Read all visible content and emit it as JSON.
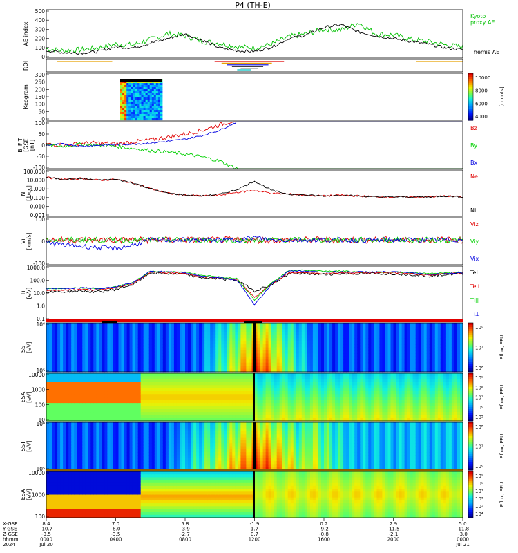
{
  "title": "P4 (TH-E)",
  "colors": {
    "red": "#e00000",
    "green": "#00d000",
    "blue": "#0000e0",
    "orange": "#e8a000",
    "black": "#000000",
    "kyoto": "#00c000"
  },
  "panels": [
    {
      "id": "ae",
      "ylabel": "AE index",
      "yticks": [
        "500",
        "400",
        "300",
        "200",
        "100",
        "0"
      ],
      "right_labels": [
        {
          "text": "Kyoto\nproxy AE",
          "color": "#00c000"
        },
        {
          "text": "Themis AE",
          "color": "#000000"
        }
      ]
    },
    {
      "id": "roi",
      "ylabel": "ROI",
      "yticks": []
    },
    {
      "id": "keogram",
      "ylabel": "Keogram",
      "yticks": [
        "300",
        "250",
        "200",
        "150",
        "100",
        "50",
        "0"
      ],
      "colorbar": {
        "ticks": [
          "10000",
          "8000",
          "6000",
          "4000"
        ],
        "label": "[counts]"
      }
    },
    {
      "id": "bfield",
      "ylabel": "B_FIT\n[GSE\n[nT]",
      "yticks": [
        "100",
        "50",
        "0",
        "-50",
        "-100"
      ],
      "right_labels": [
        {
          "text": "Bz",
          "color": "#e00000"
        },
        {
          "text": "By",
          "color": "#00d000"
        },
        {
          "text": "Bx",
          "color": "#0000e0"
        }
      ]
    },
    {
      "id": "density",
      "ylabel": "Ni\n[1/cc]",
      "yticks": [
        "100.000",
        "10.000",
        "1.000",
        "0.100",
        "0.010",
        "0.001"
      ],
      "right_labels": [
        {
          "text": "Ne",
          "color": "#e00000"
        },
        {
          "text": "Ni",
          "color": "#000000"
        }
      ]
    },
    {
      "id": "velocity",
      "ylabel": "Vi\n[km/s]",
      "yticks": [
        "100",
        "0",
        "-100"
      ],
      "right_labels": [
        {
          "text": "Viz",
          "color": "#e00000"
        },
        {
          "text": "Viy",
          "color": "#00d000"
        },
        {
          "text": "Vix",
          "color": "#0000e0"
        }
      ]
    },
    {
      "id": "temp",
      "ylabel": "Ti\n[eV]",
      "yticks": [
        "1000.0",
        "100.0",
        "10.0",
        "1.0",
        "0.1"
      ],
      "right_labels": [
        {
          "text": "TeI",
          "color": "#000000"
        },
        {
          "text": "Te⊥",
          "color": "#e00000"
        },
        {
          "text": "Ti||",
          "color": "#00d000"
        },
        {
          "text": "Ti⊥",
          "color": "#0000e0"
        }
      ]
    },
    {
      "id": "sst_e",
      "ylabel": "SST\n[eV]",
      "yticks": [
        "10⁶",
        "10⁵"
      ],
      "colorbar": {
        "ticks": [
          "10⁸",
          "10⁷",
          "10⁶"
        ],
        "label": "Eflux, EFU"
      }
    },
    {
      "id": "esa_e",
      "ylabel": "ESA\n[eV]",
      "yticks": [
        "10000",
        "1000",
        "100",
        "10"
      ],
      "colorbar": {
        "ticks": [
          "10⁹",
          "10⁸",
          "10⁷",
          "10⁶",
          "10⁵"
        ],
        "label": "Eflux, EFU"
      }
    },
    {
      "id": "sst_i",
      "ylabel": "SST\n[eV]",
      "yticks": [
        "10⁶",
        "10⁵"
      ],
      "colorbar": {
        "ticks": [
          "10⁸",
          "10⁷",
          "10⁶"
        ],
        "label": "Eflux, EFU"
      }
    },
    {
      "id": "esa_i",
      "ylabel": "ESA\n[eV]",
      "yticks": [
        "10000",
        "1000",
        "100"
      ],
      "colorbar": {
        "ticks": [
          "10⁹",
          "10⁸",
          "10⁷",
          "10⁶",
          "10⁵",
          "10⁴"
        ],
        "label": "Eflux, EFU"
      }
    }
  ],
  "xaxis": {
    "row_labels": [
      "X-GSE",
      "Y-GSE",
      "Z-GSE",
      "hhmm",
      "2024"
    ],
    "columns": [
      {
        "x": "8.4",
        "y": "-10.7",
        "z": "-3.5",
        "t": "0000",
        "d": "Jul 20"
      },
      {
        "x": "7.0",
        "y": "-8.0",
        "z": "-3.5",
        "t": "0400",
        "d": ""
      },
      {
        "x": "5.8",
        "y": "-3.9",
        "z": "-2.7",
        "t": "0800",
        "d": ""
      },
      {
        "x": "-1.9",
        "y": "1.7",
        "z": "0.7",
        "t": "1200",
        "d": ""
      },
      {
        "x": "0.2",
        "y": "-9.2",
        "z": "-0.8",
        "t": "1600",
        "d": ""
      },
      {
        "x": "2.9",
        "y": "-11.5",
        "z": "-2.1",
        "t": "2000",
        "d": ""
      },
      {
        "x": "5.0",
        "y": "-11.8",
        "z": "-3.0",
        "t": "0000",
        "d": "Jul 21"
      }
    ]
  },
  "chart_data": {
    "type": "line",
    "title": "P4 (TH-E)",
    "x_hours": [
      0,
      1,
      2,
      3,
      4,
      5,
      6,
      7,
      8,
      9,
      10,
      11,
      12,
      13,
      14,
      15,
      16,
      17,
      18,
      19,
      20,
      21,
      22,
      23,
      24
    ],
    "series": [
      {
        "name": "Themis AE",
        "values": [
          80,
          60,
          55,
          70,
          120,
          110,
          160,
          210,
          260,
          190,
          110,
          80,
          70,
          120,
          210,
          250,
          330,
          360,
          280,
          240,
          210,
          180,
          150,
          110,
          90
        ]
      },
      {
        "name": "Kyoto proxy AE",
        "values": [
          100,
          80,
          90,
          110,
          150,
          140,
          200,
          260,
          240,
          180,
          160,
          120,
          110,
          150,
          230,
          260,
          310,
          300,
          380,
          260,
          250,
          200,
          180,
          140,
          120
        ]
      }
    ]
  }
}
